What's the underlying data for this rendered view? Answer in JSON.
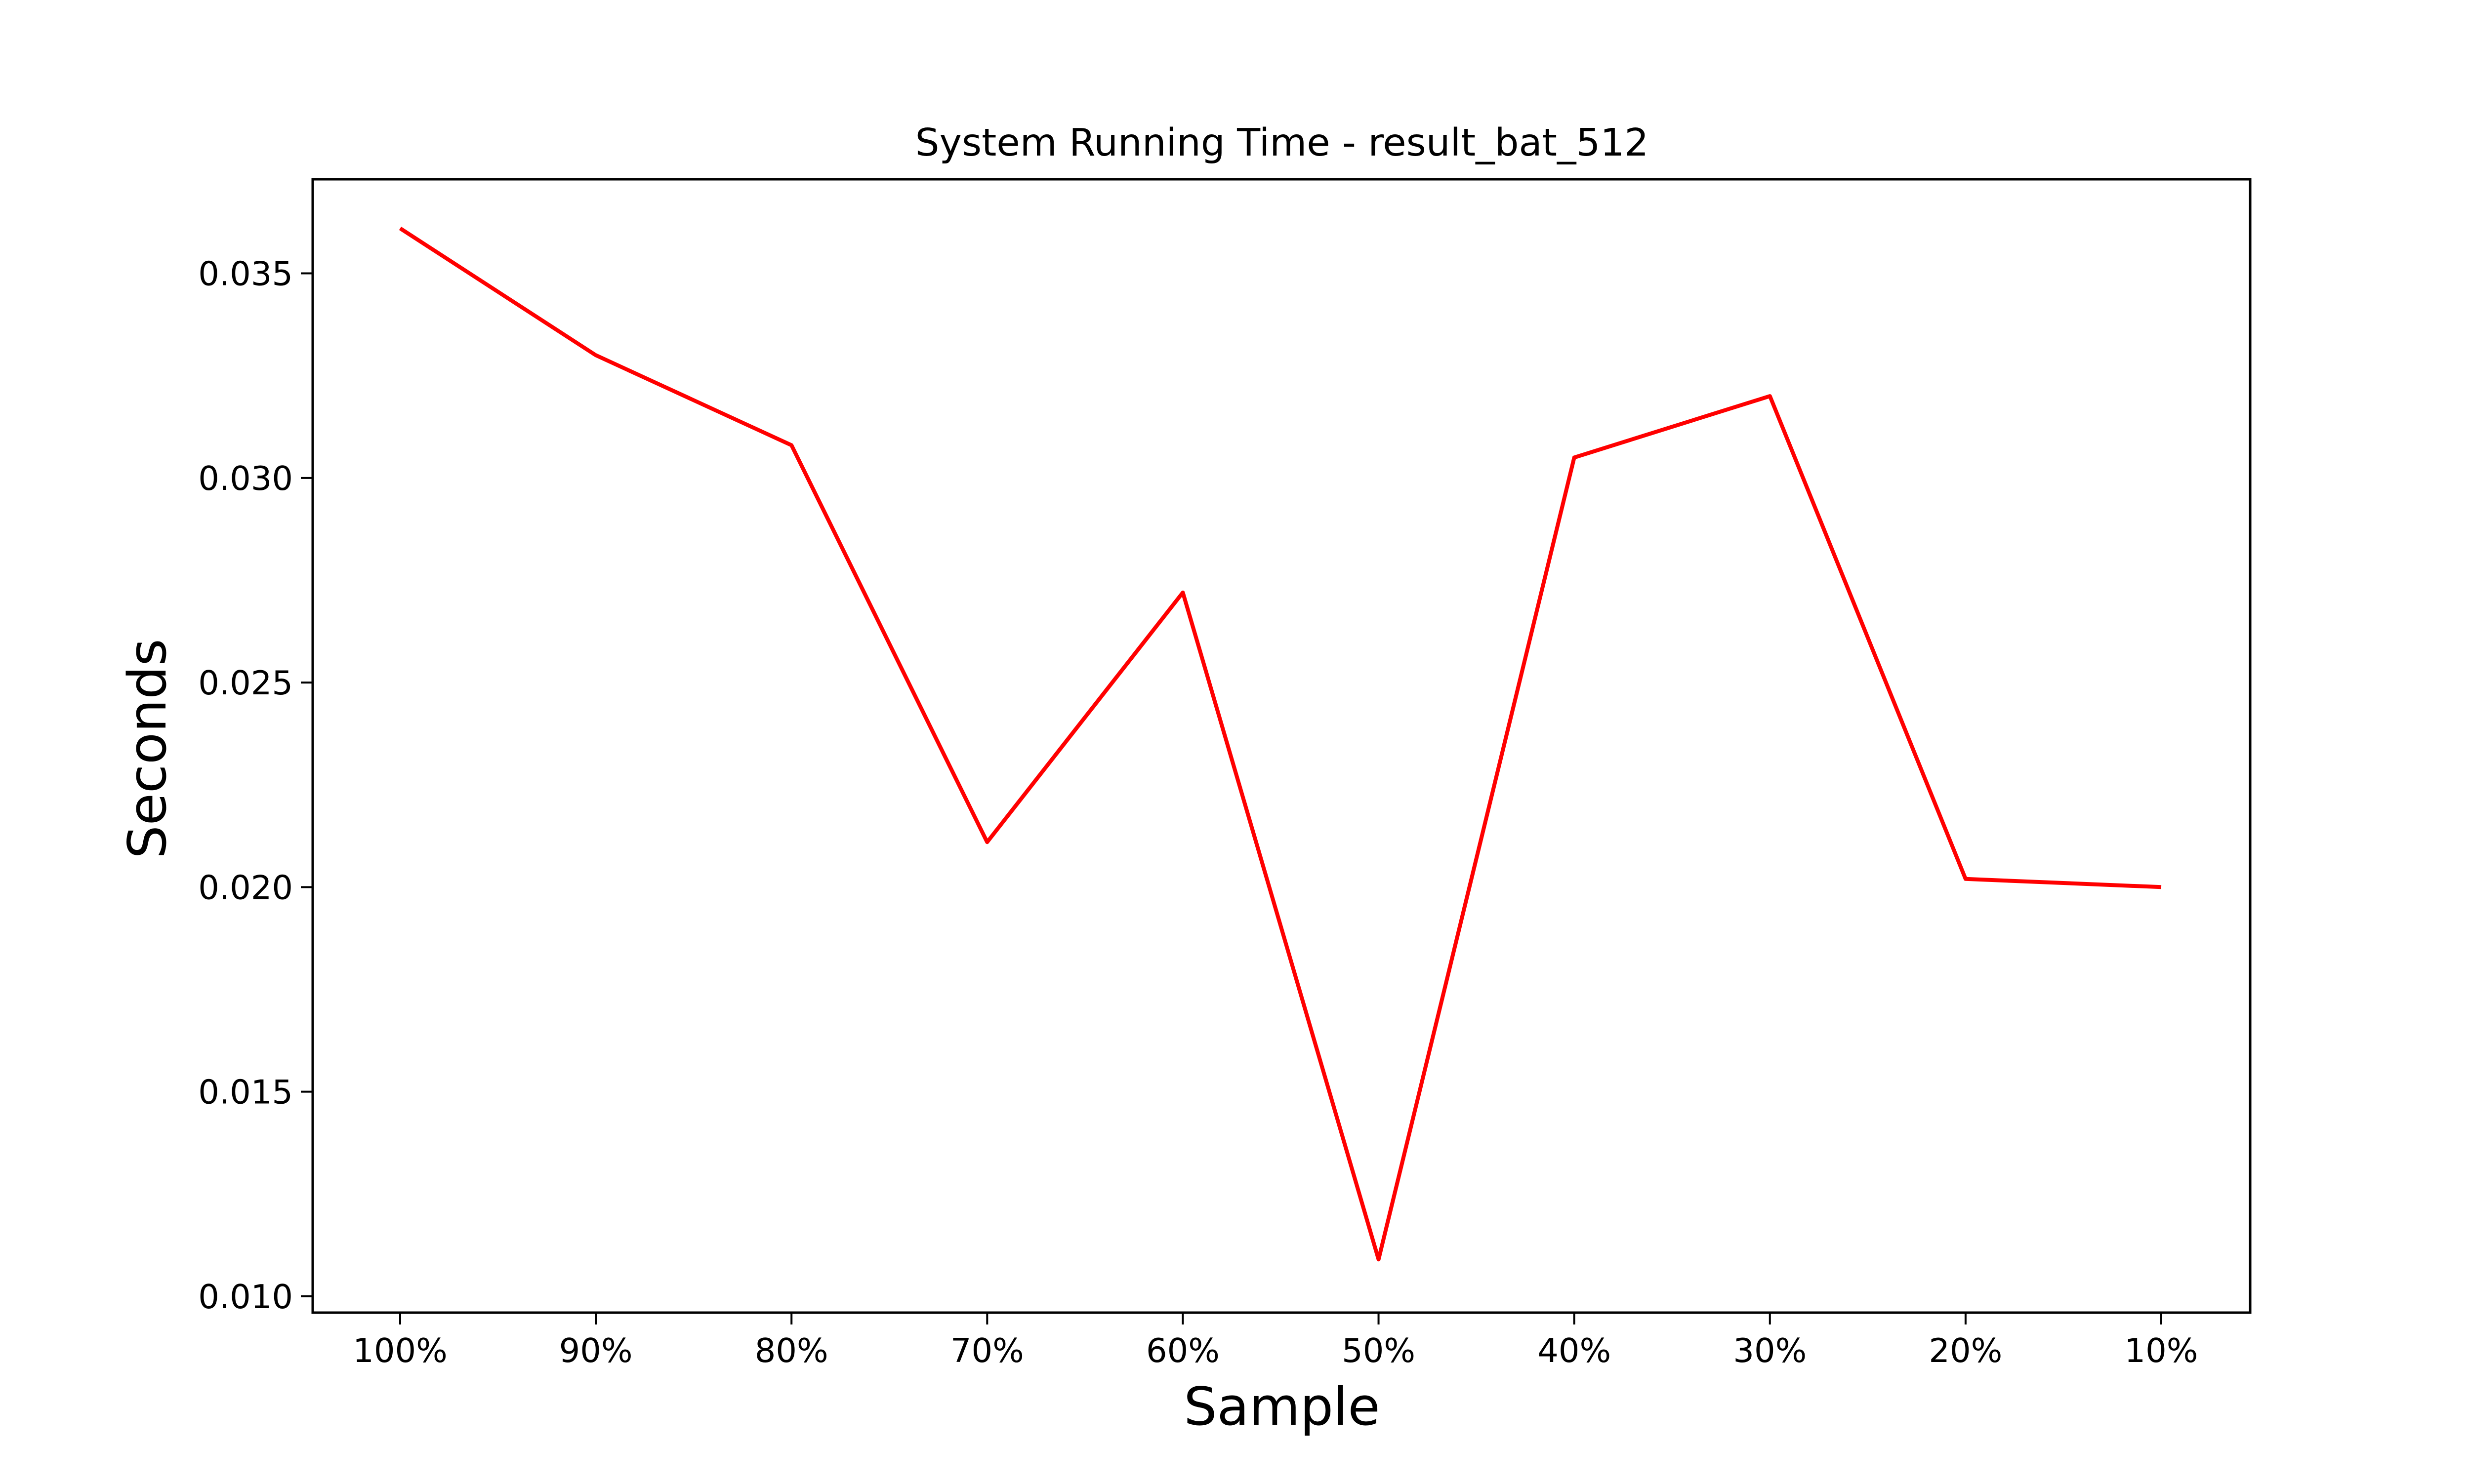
{
  "chart_data": {
    "type": "line",
    "title": "System Running Time - result_bat_512",
    "xlabel": "Sample",
    "ylabel": "Seconds",
    "categories": [
      "100%",
      "90%",
      "80%",
      "70%",
      "60%",
      "50%",
      "40%",
      "30%",
      "20%",
      "10%"
    ],
    "series": [
      {
        "values": [
          0.0361,
          0.033,
          0.0308,
          0.0211,
          0.0272,
          0.0109,
          0.0305,
          0.032,
          0.0202,
          0.02
        ],
        "color": "#ff0000"
      }
    ],
    "ylim": [
      0.0096,
      0.0373
    ],
    "yticks": [
      0.01,
      0.015,
      0.02,
      0.025,
      0.03,
      0.035
    ],
    "ytick_labels": [
      "0.010",
      "0.015",
      "0.020",
      "0.025",
      "0.030",
      "0.035"
    ],
    "grid": false,
    "legend": "none"
  }
}
